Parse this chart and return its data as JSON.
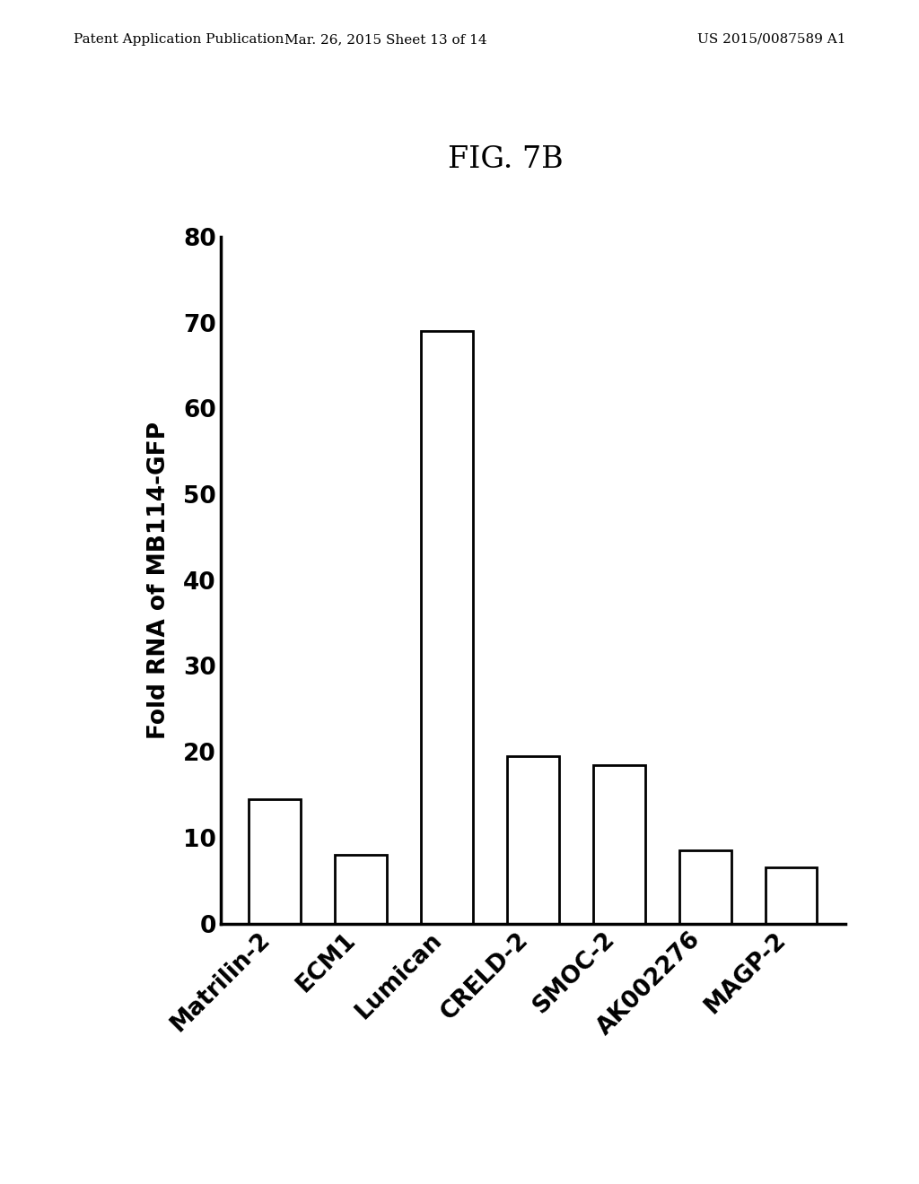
{
  "title": "FIG. 7B",
  "ylabel": "Fold RNA of MB114-GFP",
  "categories": [
    "Matrilin-2",
    "ECM1",
    "Lumican",
    "CRELD-2",
    "SMOC-2",
    "AK002276",
    "MAGP-2"
  ],
  "values": [
    14.5,
    8.0,
    69.0,
    19.5,
    18.5,
    8.5,
    6.5
  ],
  "ylim": [
    0,
    80
  ],
  "yticks": [
    0,
    10,
    20,
    30,
    40,
    50,
    60,
    70,
    80
  ],
  "bar_color": "#ffffff",
  "bar_edgecolor": "#000000",
  "bar_linewidth": 2.0,
  "background_color": "#ffffff",
  "title_fontsize": 24,
  "ylabel_fontsize": 19,
  "tick_fontsize": 19,
  "xtick_fontsize": 19,
  "header_left": "Patent Application Publication",
  "header_mid": "Mar. 26, 2015 Sheet 13 of 14",
  "header_right": "US 2015/0087589 A1",
  "header_fontsize": 11
}
